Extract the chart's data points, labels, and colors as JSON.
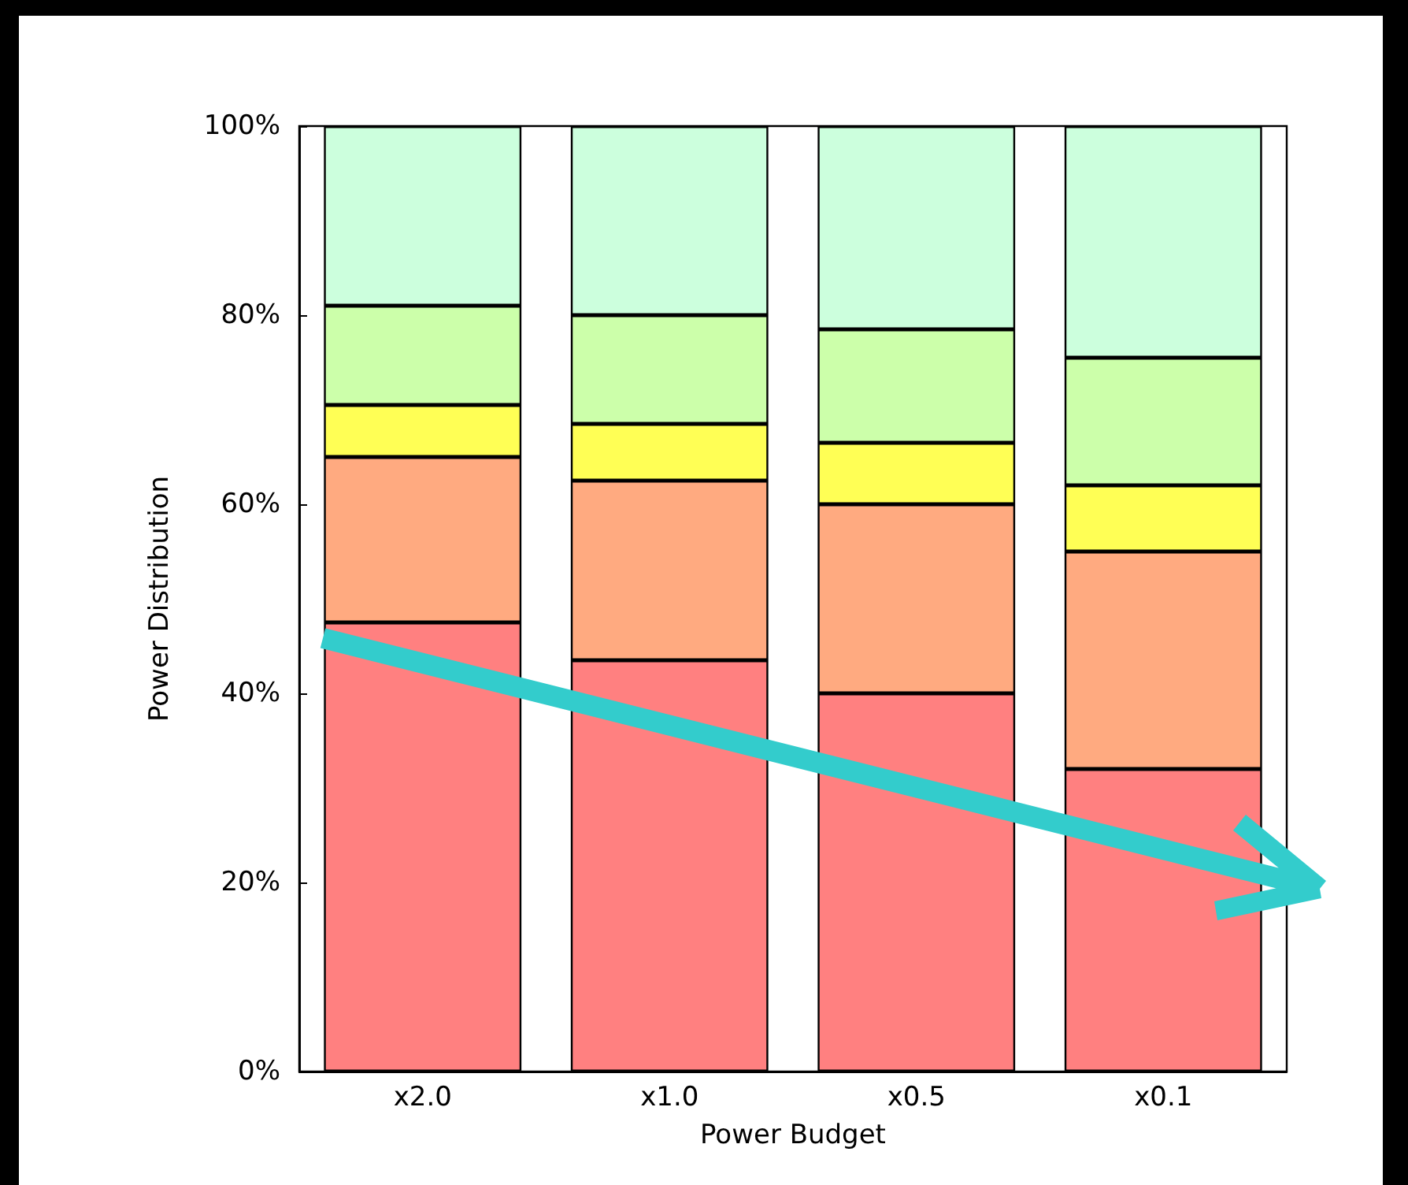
{
  "chart_data": {
    "type": "bar",
    "stacked": true,
    "xlabel": "Power Budget",
    "ylabel": "Power Distribution",
    "categories": [
      "x2.0",
      "x1.0",
      "x0.5",
      "x0.1"
    ],
    "series": [
      {
        "color": "#ff8080",
        "values": [
          47.5,
          43.5,
          40,
          32
        ]
      },
      {
        "color": "#ffaa80",
        "values": [
          17.5,
          19,
          20,
          23
        ]
      },
      {
        "color": "#ffff55",
        "values": [
          5.5,
          6,
          6.5,
          7
        ]
      },
      {
        "color": "#ccffaa",
        "values": [
          10.5,
          11.5,
          12,
          13.5
        ]
      },
      {
        "color": "#ccffdd",
        "values": [
          19,
          20,
          21.5,
          24.5
        ]
      }
    ],
    "ylim": [
      0,
      100
    ],
    "yticks": [
      {
        "value": 0,
        "label": "0%"
      },
      {
        "value": 20,
        "label": "20%"
      },
      {
        "value": 40,
        "label": "40%"
      },
      {
        "value": 60,
        "label": "60%"
      },
      {
        "value": 80,
        "label": "80%"
      },
      {
        "value": 100,
        "label": "100%"
      }
    ],
    "grid": false
  }
}
